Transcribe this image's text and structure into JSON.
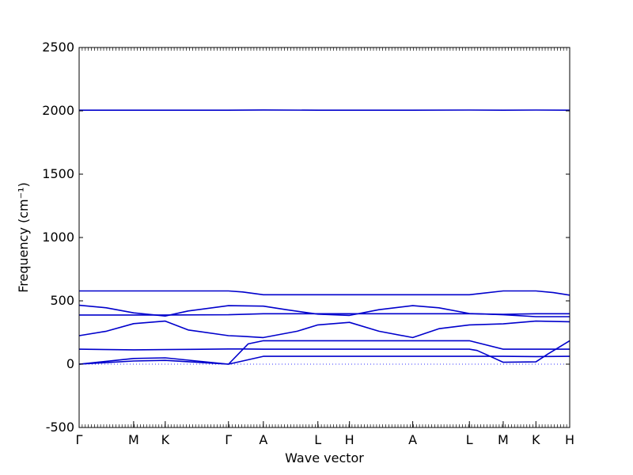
{
  "chart_data": {
    "type": "line",
    "xlabel": "Wave vector",
    "ylabel": "Frequency (cm⁻¹)",
    "ylim": [
      -500,
      2500
    ],
    "yticks": [
      -500,
      0,
      500,
      1000,
      1500,
      2000,
      2500
    ],
    "xticks": [
      {
        "label": "Γ",
        "x": 0
      },
      {
        "label": "M",
        "x": 1
      },
      {
        "label": "K",
        "x": 1.58
      },
      {
        "label": "Γ",
        "x": 2.74
      },
      {
        "label": "A",
        "x": 3.38
      },
      {
        "label": "L",
        "x": 4.38
      },
      {
        "label": "H",
        "x": 4.96
      },
      {
        "label": "A",
        "x": 6.12
      },
      {
        "label": "L",
        "x": 7.16
      },
      {
        "label": "M",
        "x": 7.78
      },
      {
        "label": "K",
        "x": 8.38
      },
      {
        "label": "H",
        "x": 9.0
      }
    ],
    "xlim": [
      0,
      9.0
    ],
    "grid": false,
    "line_color": "#0000cc",
    "zero_line_color": "#3333ff",
    "series": [
      {
        "x": [
          0,
          1,
          1.58,
          2.74,
          3.38,
          4.38,
          4.96,
          6.12,
          7.16,
          7.78,
          8.38,
          9.0
        ],
        "y": [
          2005,
          2005,
          2005,
          2005,
          2007,
          2005,
          2005,
          2005,
          2006,
          2005,
          2006,
          2005
        ]
      },
      {
        "x": [
          0,
          1,
          1.58,
          2.74,
          3.0,
          3.38,
          4.38,
          4.96,
          6.12,
          7.16,
          7.4,
          7.78,
          8.38,
          8.7,
          9.0
        ],
        "y": [
          578,
          578,
          578,
          578,
          570,
          548,
          548,
          548,
          548,
          548,
          560,
          578,
          578,
          565,
          545
        ]
      },
      {
        "x": [
          0,
          0.5,
          1,
          1.58,
          2.0,
          2.74,
          3.38,
          3.8,
          4.38,
          4.96,
          5.5,
          6.12,
          6.6,
          7.16,
          7.78,
          8.38,
          9.0
        ],
        "y": [
          465,
          445,
          405,
          380,
          420,
          462,
          458,
          430,
          395,
          385,
          430,
          462,
          445,
          400,
          390,
          375,
          375
        ]
      },
      {
        "x": [
          0,
          1,
          1.58,
          2.74,
          3.38,
          4.38,
          4.96,
          6.12,
          7.16,
          7.78,
          8.38,
          9.0
        ],
        "y": [
          388,
          388,
          388,
          390,
          398,
          398,
          398,
          398,
          398,
          393,
          398,
          398
        ]
      },
      {
        "x": [
          0,
          0.5,
          1,
          1.58,
          2.0,
          2.74,
          3.0,
          3.38,
          4.0,
          4.38,
          4.96,
          5.5,
          6.12,
          6.6,
          7.16,
          7.78,
          8.38,
          9.0
        ],
        "y": [
          225,
          260,
          320,
          340,
          270,
          225,
          220,
          210,
          260,
          310,
          330,
          260,
          210,
          280,
          310,
          318,
          340,
          335
        ]
      },
      {
        "x": [
          0,
          1,
          1.58,
          2.74,
          3.0,
          3.38,
          4.38,
          4.96,
          6.12,
          7.16,
          7.3,
          7.5,
          7.78,
          8.38,
          8.6,
          9.0
        ],
        "y": [
          118,
          113,
          115,
          120,
          120,
          118,
          118,
          118,
          118,
          118,
          108,
          70,
          15,
          18,
          80,
          185
        ]
      },
      {
        "x": [
          0,
          1,
          1.58,
          2.74,
          3.38,
          4.38,
          4.96,
          6.12,
          7.16,
          7.78,
          8.38,
          9.0
        ],
        "y": [
          0,
          45,
          50,
          0,
          62,
          62,
          62,
          62,
          62,
          62,
          60,
          62
        ]
      },
      {
        "x": [
          0,
          1,
          1.58,
          2.74,
          3.1,
          3.38,
          4.38,
          4.96,
          6.12,
          7.16,
          7.78,
          8.38,
          9.0
        ],
        "y": [
          0,
          25,
          30,
          0,
          160,
          185,
          185,
          185,
          185,
          185,
          118,
          118,
          118
        ]
      }
    ]
  }
}
